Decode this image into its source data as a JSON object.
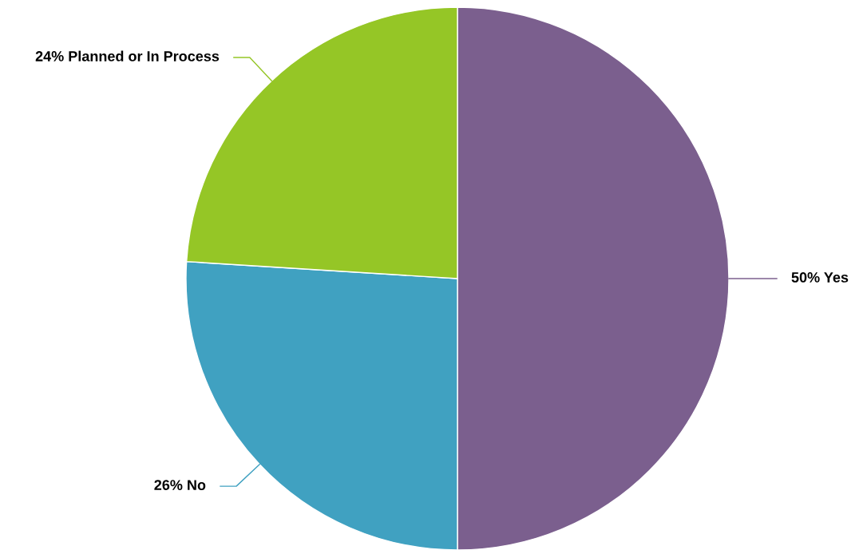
{
  "chart_data": {
    "type": "pie",
    "categories": [
      "Yes",
      "No",
      "Planned or In Process"
    ],
    "values": [
      50,
      26,
      24
    ],
    "value_labels": [
      "50%",
      "26%",
      "24%"
    ],
    "colors": [
      "#7b5f8e",
      "#40a1c1",
      "#95c626"
    ],
    "legend": false
  }
}
